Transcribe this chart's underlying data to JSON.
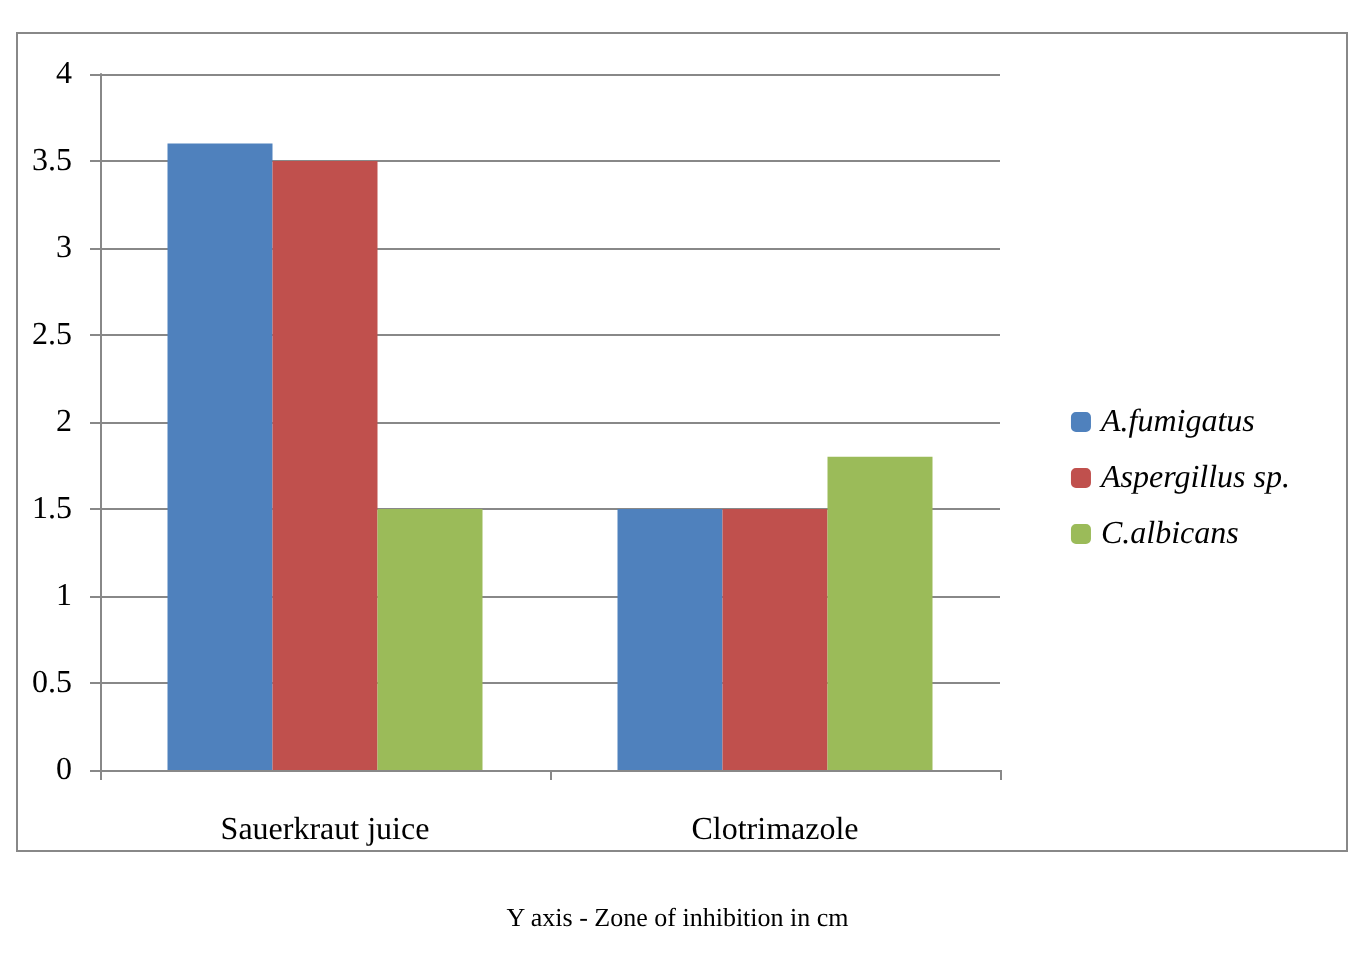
{
  "chart_data": {
    "type": "bar",
    "categories": [
      "Sauerkraut juice",
      "Clotrimazole"
    ],
    "series": [
      {
        "name": "A.fumigatus",
        "color": "#4f81bd",
        "values": [
          3.6,
          1.5
        ]
      },
      {
        "name": "Aspergillus sp.",
        "color": "#c0504d",
        "values": [
          3.5,
          1.5
        ]
      },
      {
        "name": "C.albicans",
        "color": "#9bbb59",
        "values": [
          1.5,
          1.8
        ]
      }
    ],
    "ylim": [
      0,
      4
    ],
    "yticks": [
      0,
      0.5,
      1,
      1.5,
      2,
      2.5,
      3,
      3.5,
      4
    ],
    "grid": "y",
    "legend": "right",
    "annotations": [
      "Y axis - Zone of inhibition in cm"
    ]
  }
}
